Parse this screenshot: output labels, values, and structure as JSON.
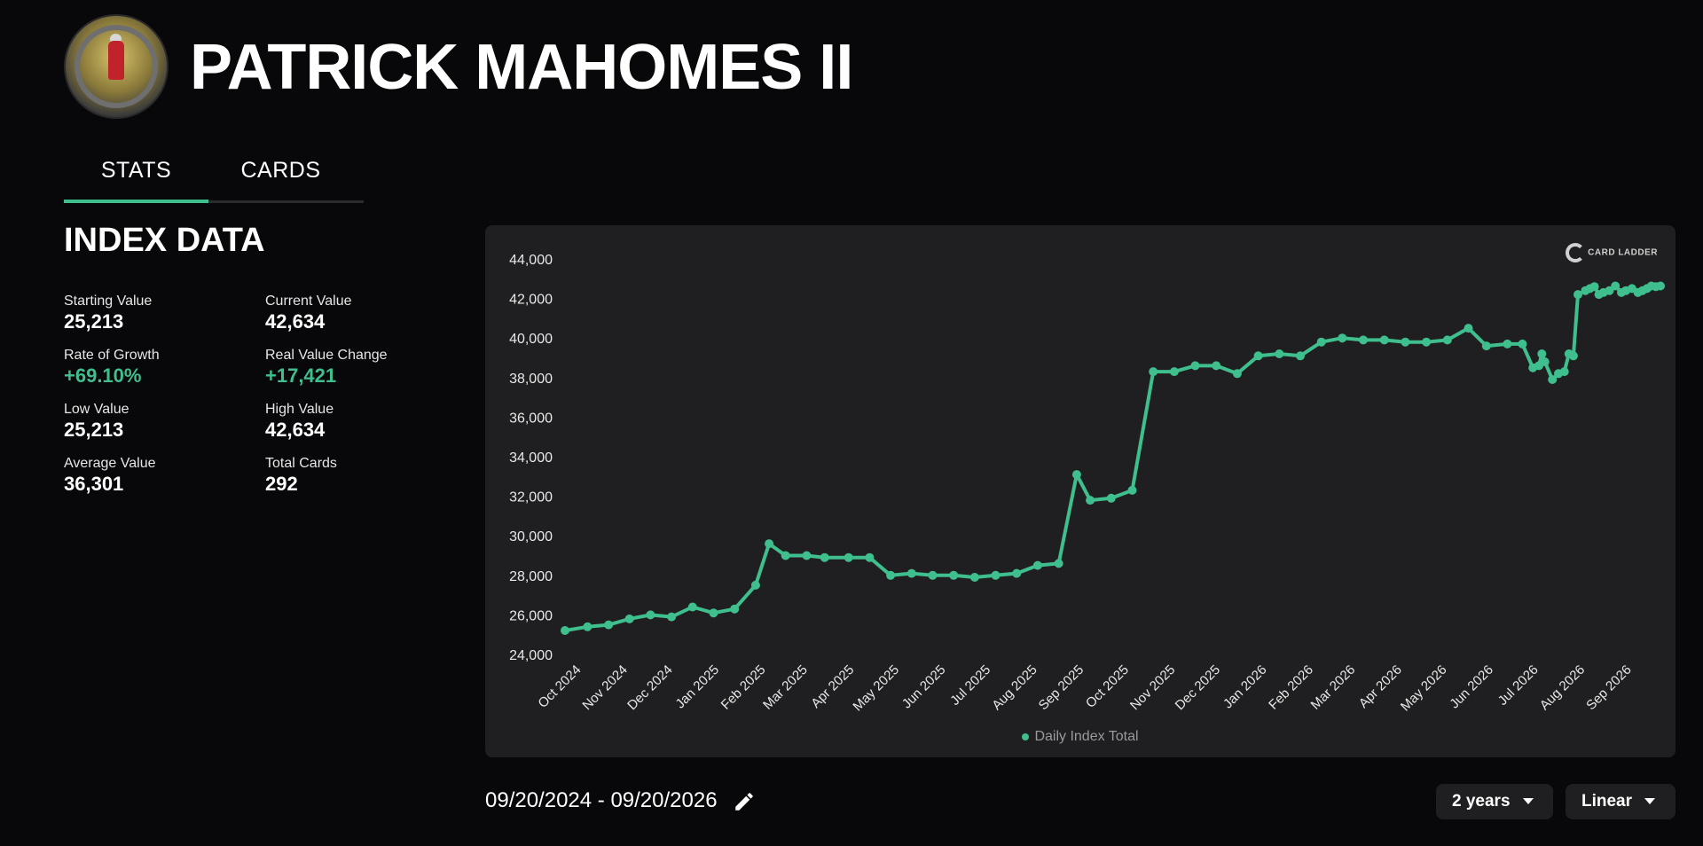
{
  "player": {
    "name": "PATRICK MAHOMES II"
  },
  "tabs": [
    {
      "label": "STATS"
    },
    {
      "label": "CARDS"
    }
  ],
  "index": {
    "heading": "INDEX DATA",
    "stats": [
      {
        "label": "Starting Value",
        "value": "25,213",
        "accent": false
      },
      {
        "label": "Current Value",
        "value": "42,634",
        "accent": false
      },
      {
        "label": "Rate of Growth",
        "value": "+69.10%",
        "accent": true
      },
      {
        "label": "Real Value Change",
        "value": "+17,421",
        "accent": true
      },
      {
        "label": "Low Value",
        "value": "25,213",
        "accent": false
      },
      {
        "label": "High Value",
        "value": "42,634",
        "accent": false
      },
      {
        "label": "Average Value",
        "value": "36,301",
        "accent": false
      },
      {
        "label": "Total Cards",
        "value": "292",
        "accent": false
      }
    ]
  },
  "logo_text": "CARD LADDER",
  "controls": {
    "date_range": "09/20/2024 - 09/20/2026",
    "period": "2 years",
    "scale": "Linear"
  },
  "colors": {
    "accent": "#3fbf8e",
    "background": "#08080a",
    "card": "#1f1f21"
  },
  "icons": {
    "edit": "pencil-icon",
    "dropdown": "caret-down-icon"
  },
  "chart_data": {
    "type": "line",
    "title": "",
    "xlabel": "",
    "ylabel": "",
    "ylim": [
      24000,
      44000
    ],
    "yticks": [
      24000,
      26000,
      28000,
      30000,
      32000,
      34000,
      36000,
      38000,
      40000,
      42000,
      44000
    ],
    "ytick_labels": [
      "24,000",
      "26,000",
      "28,000",
      "30,000",
      "32,000",
      "34,000",
      "36,000",
      "38,000",
      "40,000",
      "42,000",
      "44,000"
    ],
    "xlim": [
      "2024-09-20",
      "2026-09-20"
    ],
    "x_tick_labels": [
      "Oct 2024",
      "Nov 2024",
      "Dec 2024",
      "Jan 2025",
      "Feb 2025",
      "Mar 2025",
      "Apr 2025",
      "May 2025",
      "Jun 2025",
      "Jul 2025",
      "Aug 2025",
      "Sep 2025",
      "Oct 2025",
      "Nov 2025",
      "Dec 2025",
      "Jan 2026",
      "Feb 2026",
      "Mar 2026",
      "Apr 2026",
      "May 2026",
      "Jun 2026",
      "Jul 2026",
      "Aug 2026",
      "Sep 2026"
    ],
    "x_tick_dates": [
      "2024-10-01",
      "2024-11-01",
      "2024-12-01",
      "2025-01-01",
      "2025-02-01",
      "2025-03-01",
      "2025-04-01",
      "2025-05-01",
      "2025-06-01",
      "2025-07-01",
      "2025-08-01",
      "2025-09-01",
      "2025-10-01",
      "2025-11-01",
      "2025-12-01",
      "2026-01-01",
      "2026-02-01",
      "2026-03-01",
      "2026-04-01",
      "2026-05-01",
      "2026-06-01",
      "2026-07-01",
      "2026-08-01",
      "2026-09-01"
    ],
    "legend": "bottom",
    "grid": false,
    "series": [
      {
        "name": "Daily Index Total",
        "color": "#3fbf8e",
        "x": [
          "2024-09-20",
          "2024-10-05",
          "2024-10-19",
          "2024-11-02",
          "2024-11-16",
          "2024-11-30",
          "2024-12-14",
          "2024-12-28",
          "2025-01-11",
          "2025-01-25",
          "2025-02-03",
          "2025-02-14",
          "2025-02-28",
          "2025-03-12",
          "2025-03-28",
          "2025-04-11",
          "2025-04-25",
          "2025-05-09",
          "2025-05-23",
          "2025-06-06",
          "2025-06-20",
          "2025-07-04",
          "2025-07-18",
          "2025-08-01",
          "2025-08-15",
          "2025-08-27",
          "2025-09-05",
          "2025-09-19",
          "2025-10-03",
          "2025-10-17",
          "2025-10-31",
          "2025-11-14",
          "2025-11-28",
          "2025-12-12",
          "2025-12-26",
          "2026-01-09",
          "2026-01-23",
          "2026-02-06",
          "2026-02-20",
          "2026-03-06",
          "2026-03-20",
          "2026-04-03",
          "2026-04-17",
          "2026-05-01",
          "2026-05-15",
          "2026-05-27",
          "2026-06-10",
          "2026-06-20",
          "2026-06-27",
          "2026-07-01",
          "2026-07-03",
          "2026-07-05",
          "2026-07-10",
          "2026-07-14",
          "2026-07-18",
          "2026-07-21",
          "2026-07-24",
          "2026-07-27",
          "2026-08-01",
          "2026-08-04",
          "2026-08-07",
          "2026-08-10",
          "2026-08-13",
          "2026-08-17",
          "2026-08-21",
          "2026-08-25",
          "2026-08-28",
          "2026-09-01",
          "2026-09-05",
          "2026-09-08",
          "2026-09-11",
          "2026-09-14",
          "2026-09-17",
          "2026-09-20"
        ],
        "y": [
          25213,
          25400,
          25500,
          25800,
          26000,
          25900,
          26400,
          26100,
          26300,
          27500,
          29600,
          29000,
          29000,
          28900,
          28900,
          28900,
          28000,
          28100,
          28000,
          28000,
          27900,
          28000,
          28100,
          28500,
          28600,
          33100,
          31800,
          31900,
          32300,
          38300,
          38300,
          38600,
          38600,
          38200,
          39100,
          39200,
          39100,
          39800,
          40000,
          39900,
          39900,
          39800,
          39800,
          39900,
          40500,
          39600,
          39700,
          39700,
          38500,
          38600,
          39200,
          38800,
          37900,
          38200,
          38300,
          39200,
          39100,
          42200,
          42400,
          42500,
          42600,
          42200,
          42300,
          42400,
          42634,
          42300,
          42400,
          42500,
          42300,
          42400,
          42500,
          42634,
          42600,
          42634
        ]
      }
    ]
  }
}
